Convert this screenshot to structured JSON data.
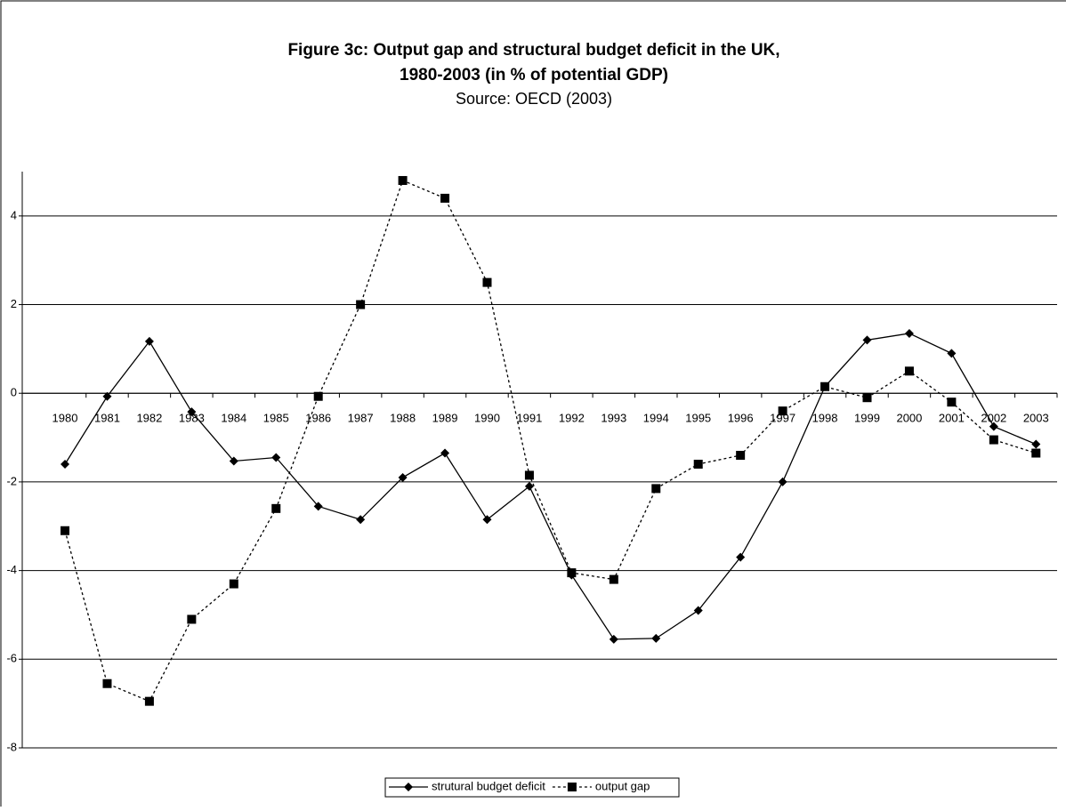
{
  "chart_data": {
    "type": "line",
    "title": [
      "Figure 3c: Output gap and structural budget deficit in the UK,",
      "1980-2003 (in % of potential GDP)"
    ],
    "subtitle": "Source: OECD (2003)",
    "categories": [
      "1980",
      "1981",
      "1982",
      "1983",
      "1984",
      "1985",
      "1986",
      "1987",
      "1988",
      "1989",
      "1990",
      "1991",
      "1992",
      "1993",
      "1994",
      "1995",
      "1996",
      "1997",
      "1998",
      "1999",
      "2000",
      "2001",
      "2002",
      "2003"
    ],
    "series": [
      {
        "name": "strutural budget deficit",
        "color": "#000000",
        "marker": "diamond",
        "line_style": "solid",
        "values": [
          -1.6,
          -0.07,
          1.17,
          -0.42,
          -1.53,
          -1.45,
          -2.55,
          -2.85,
          -1.9,
          -1.35,
          -2.85,
          -2.1,
          -4.1,
          -5.55,
          -5.53,
          -4.9,
          -3.7,
          -2.0,
          0.15,
          1.2,
          1.35,
          0.9,
          -0.75,
          -1.15
        ]
      },
      {
        "name": "output gap",
        "color": "#000000",
        "marker": "square",
        "line_style": "dotted",
        "values": [
          -3.1,
          -6.55,
          -6.95,
          -5.1,
          -4.3,
          -2.6,
          -0.07,
          2.0,
          4.8,
          4.4,
          2.5,
          -1.85,
          -4.05,
          -4.2,
          -2.15,
          -1.6,
          -1.4,
          -0.4,
          0.15,
          -0.1,
          0.5,
          -0.2,
          -1.05,
          -1.35
        ]
      }
    ],
    "ylim": [
      -8,
      5
    ],
    "yticks": [
      -8,
      -6,
      -4,
      -2,
      0,
      2,
      4
    ],
    "grid": true,
    "legend": "bottom"
  }
}
